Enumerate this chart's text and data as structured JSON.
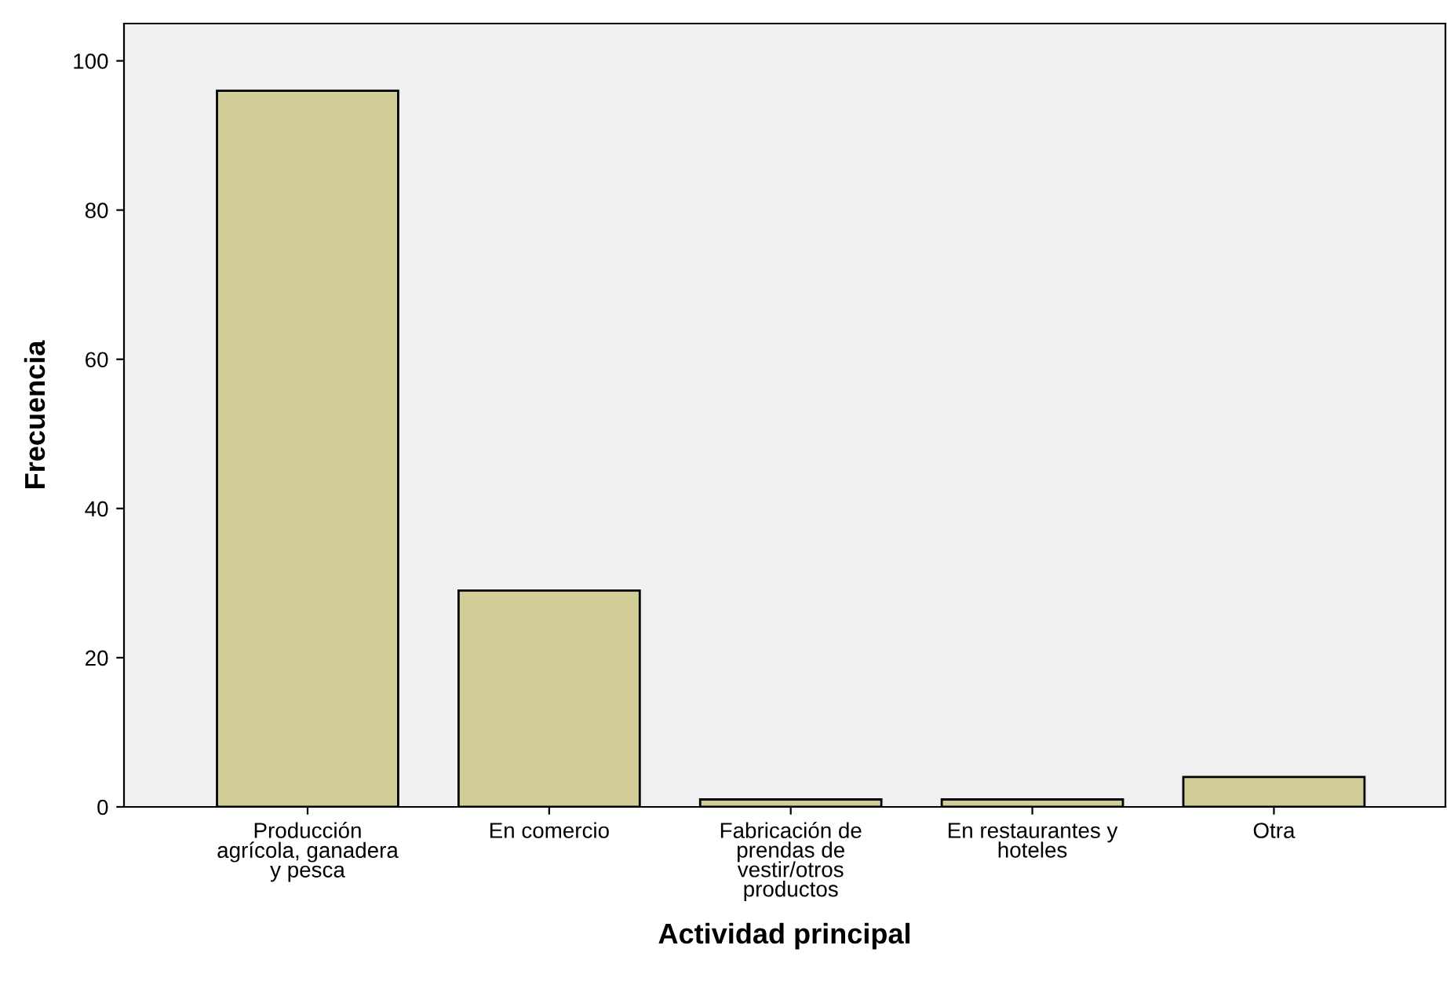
{
  "chart_data": {
    "type": "bar",
    "xlabel": "Actividad principal",
    "ylabel": "Frecuencia",
    "categories": [
      "Producción\nagrícola, ganadera\ny pesca",
      "En comercio",
      "Fabricación de\nprendas de\nvestir/otros\nproductos",
      "En restaurantes y\nhoteles",
      "Otra"
    ],
    "values": [
      96,
      29,
      1,
      1,
      4
    ],
    "color": "#d3ce97",
    "ylim": [
      0,
      105
    ],
    "yticks": [
      0,
      20,
      40,
      60,
      80,
      100
    ],
    "grid": false
  }
}
